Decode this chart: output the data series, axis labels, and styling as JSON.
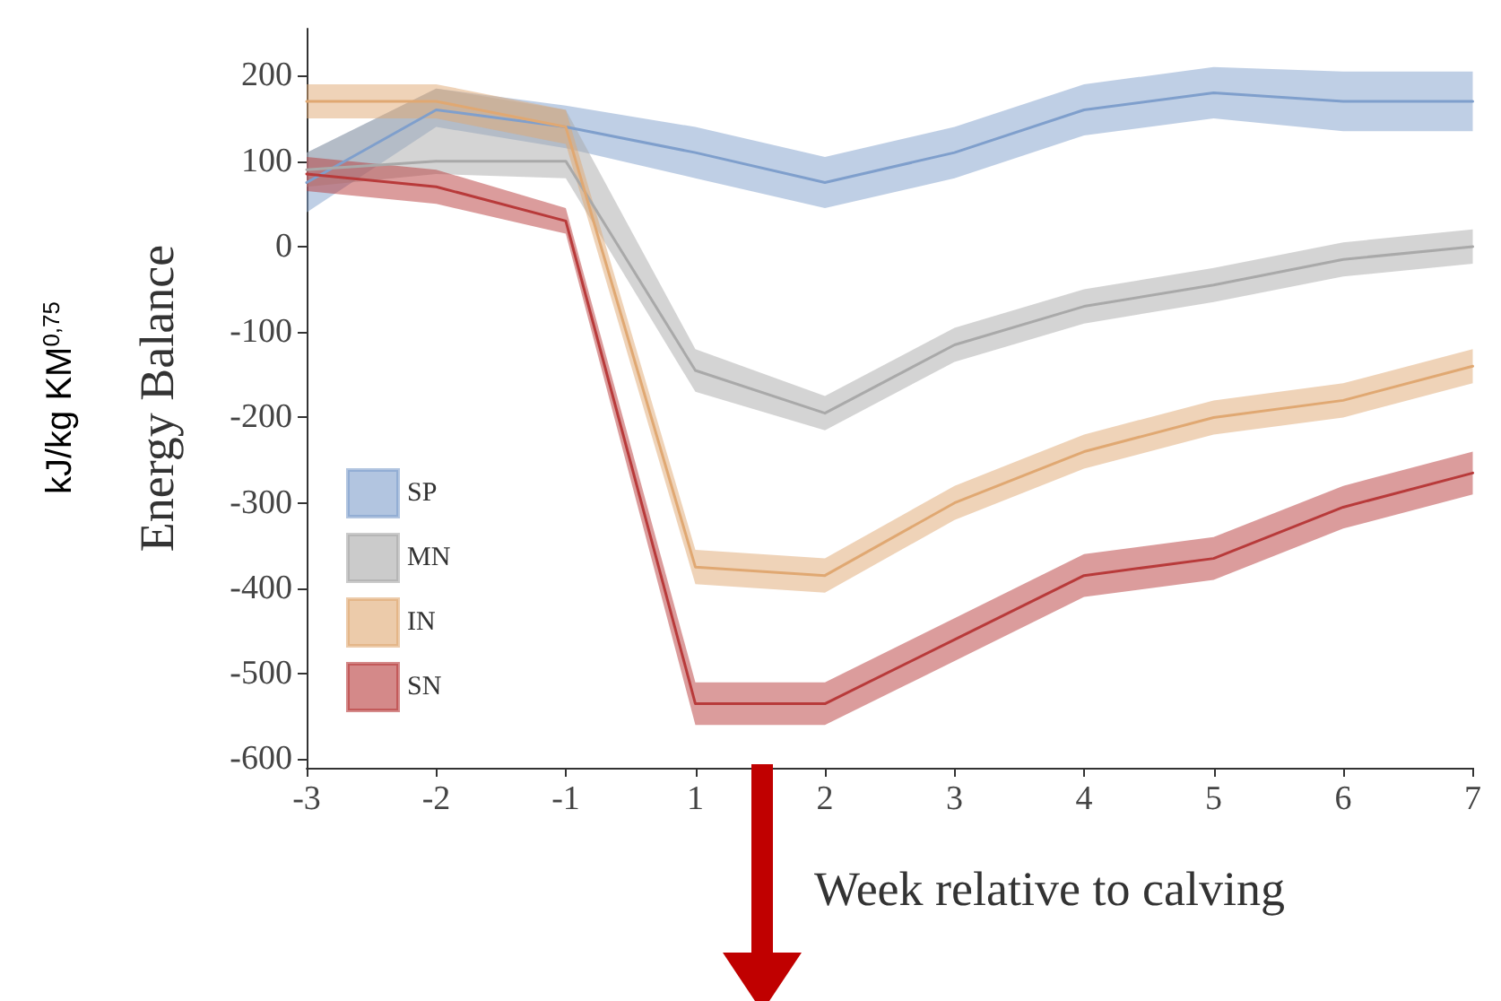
{
  "chart_data": {
    "type": "line",
    "xlabel": "Week relative to calving",
    "ylabel": "Energy Balance",
    "annotations": [
      "kJ/kg KM$^{0,75}$"
    ],
    "categories": [
      "-3",
      "-2",
      "-1",
      "1",
      "2",
      "3",
      "4",
      "5",
      "6",
      "7"
    ],
    "ylim": [
      -610,
      255
    ],
    "yticks": [
      -600,
      -500,
      -400,
      -300,
      -200,
      -100,
      0,
      100,
      200
    ],
    "grid": false,
    "legend": "bottom left",
    "marker": "none",
    "line_style": "solid",
    "series": [
      {
        "name": "SP",
        "color": "#7f9fcc",
        "values": [
          75,
          160,
          140,
          110,
          75,
          110,
          160,
          180,
          170,
          170
        ],
        "lower": [
          40,
          140,
          115,
          80,
          45,
          80,
          130,
          150,
          135,
          135
        ],
        "upper": [
          110,
          185,
          165,
          140,
          105,
          140,
          190,
          210,
          205,
          205
        ]
      },
      {
        "name": "MN",
        "color": "#a9a9a9",
        "values": [
          90,
          100,
          100,
          -145,
          -195,
          -115,
          -70,
          -45,
          -15,
          0
        ],
        "lower": [
          70,
          85,
          80,
          -170,
          -215,
          -135,
          -90,
          -65,
          -35,
          -20
        ],
        "upper": [
          110,
          185,
          160,
          -120,
          -175,
          -95,
          -50,
          -25,
          5,
          20
        ]
      },
      {
        "name": "IN",
        "color": "#e0a872",
        "values": [
          170,
          170,
          140,
          -375,
          -385,
          -300,
          -240,
          -200,
          -180,
          -140
        ],
        "lower": [
          150,
          150,
          120,
          -395,
          -405,
          -320,
          -260,
          -220,
          -200,
          -160
        ],
        "upper": [
          190,
          190,
          160,
          -355,
          -365,
          -280,
          -220,
          -180,
          -160,
          -120
        ]
      },
      {
        "name": "SN",
        "color": "#b83a3a",
        "values": [
          85,
          70,
          30,
          -535,
          -535,
          -460,
          -385,
          -365,
          -305,
          -265
        ],
        "lower": [
          65,
          50,
          15,
          -560,
          -560,
          -485,
          -410,
          -390,
          -330,
          -290
        ],
        "upper": [
          105,
          90,
          45,
          -510,
          -510,
          -435,
          -360,
          -340,
          -280,
          -240
        ]
      }
    ]
  }
}
